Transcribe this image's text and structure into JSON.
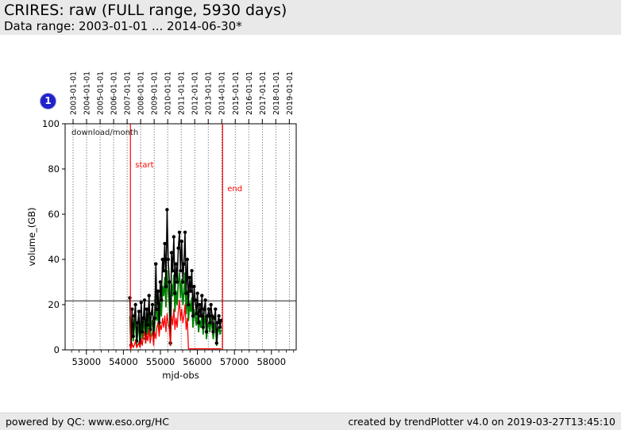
{
  "header": {
    "title": "CRIRES: raw (FULL range, 5930 days)",
    "subtitle": "Data range: 2003-01-01 ... 2014-06-30*"
  },
  "badge": {
    "label": "1",
    "color": "#2121cc"
  },
  "footer": {
    "left": "powered by QC: www.eso.org/HC",
    "right": "created by trendPlotter v4.0 on 2019-03-27T13:45:10"
  },
  "colors": {
    "bar_background": "#e9e9e9",
    "marker_lines": "#ff0000",
    "series_black": "#000000",
    "series_green": "#007f00",
    "series_red": "#ff0000",
    "badge_blue": "#2121cc"
  },
  "chart_data": {
    "type": "line",
    "inner_label": "download/month",
    "xlabel": "mjd-obs",
    "ylabel": "volume_(GB)",
    "xlim": [
      52425,
      58670
    ],
    "ylim": [
      0,
      100
    ],
    "x_ticks": [
      53000,
      54000,
      55000,
      56000,
      57000,
      58000
    ],
    "x_minor_tick_step": 200,
    "y_ticks": [
      0,
      20,
      40,
      60,
      80,
      100
    ],
    "grid": "vertical-dotted-at-year-starts",
    "legend_position": "none",
    "top_axis_dates": [
      "2003-01-01",
      "2004-01-01",
      "2005-01-01",
      "2006-01-01",
      "2007-01-01",
      "2008-01-01",
      "2009-01-01",
      "2010-01-01",
      "2011-01-01",
      "2012-01-01",
      "2013-01-01",
      "2014-01-01",
      "2015-01-01",
      "2016-01-01",
      "2017-01-01",
      "2018-01-01",
      "2019-01-01"
    ],
    "reference_line_y": 21.7,
    "markers": [
      {
        "label": "start",
        "mjd": 54190
      },
      {
        "label": "end",
        "mjd": 56680
      }
    ],
    "months": [
      "2007-03",
      "2007-04",
      "2007-05",
      "2007-06",
      "2007-07",
      "2007-08",
      "2007-09",
      "2007-10",
      "2007-11",
      "2007-12",
      "2008-01",
      "2008-02",
      "2008-03",
      "2008-04",
      "2008-05",
      "2008-06",
      "2008-07",
      "2008-08",
      "2008-09",
      "2008-10",
      "2008-11",
      "2008-12",
      "2009-01",
      "2009-02",
      "2009-03",
      "2009-04",
      "2009-05",
      "2009-06",
      "2009-07",
      "2009-08",
      "2009-09",
      "2009-10",
      "2009-11",
      "2009-12",
      "2010-01",
      "2010-02",
      "2010-03",
      "2010-04",
      "2010-05",
      "2010-06",
      "2010-07",
      "2010-08",
      "2010-09",
      "2010-10",
      "2010-11",
      "2010-12",
      "2011-01",
      "2011-02",
      "2011-03",
      "2011-04",
      "2011-05",
      "2011-06",
      "2011-07",
      "2011-08",
      "2011-09",
      "2011-10",
      "2011-11",
      "2011-12",
      "2012-01",
      "2012-02",
      "2012-03",
      "2012-04",
      "2012-05",
      "2012-06",
      "2012-07",
      "2012-08",
      "2012-09",
      "2012-10",
      "2012-11",
      "2012-12",
      "2013-01",
      "2013-02",
      "2013-03",
      "2013-04",
      "2013-05",
      "2013-06",
      "2013-07",
      "2013-08",
      "2013-09",
      "2013-10",
      "2013-11",
      "2013-12"
    ],
    "series": [
      {
        "name": "series-black",
        "color": "#000000",
        "marker": "circle",
        "values": [
          23,
          2,
          18,
          6,
          15,
          20,
          4,
          12,
          17,
          3,
          21,
          8,
          14,
          22,
          5,
          18,
          11,
          24,
          9,
          16,
          20,
          7,
          14,
          38,
          18,
          26,
          12,
          30,
          22,
          40,
          35,
          47,
          28,
          62,
          40,
          30,
          3,
          43,
          35,
          50,
          25,
          38,
          30,
          45,
          52,
          35,
          48,
          30,
          38,
          52,
          25,
          40,
          20,
          32,
          26,
          35,
          15,
          28,
          22,
          16,
          25,
          12,
          20,
          15,
          24,
          10,
          18,
          22,
          8,
          15,
          18,
          12,
          20,
          15,
          8,
          14,
          18,
          3,
          12,
          15,
          10,
          13
        ]
      },
      {
        "name": "series-green",
        "color": "#007f00",
        "marker": "none",
        "values": [
          15,
          1,
          12,
          4,
          10,
          14,
          2,
          8,
          11,
          2,
          14,
          5,
          9,
          15,
          3,
          12,
          7,
          16,
          6,
          11,
          13,
          4,
          10,
          26,
          13,
          18,
          8,
          21,
          15,
          28,
          24,
          32,
          19,
          35,
          27,
          20,
          2,
          29,
          24,
          33,
          17,
          26,
          20,
          30,
          34,
          23,
          31,
          20,
          25,
          34,
          16,
          26,
          13,
          21,
          17,
          23,
          10,
          18,
          15,
          11,
          17,
          8,
          13,
          10,
          16,
          7,
          12,
          15,
          5,
          10,
          12,
          8,
          14,
          10,
          5,
          9,
          12,
          2,
          8,
          10,
          7,
          9
        ]
      },
      {
        "name": "series-red",
        "color": "#ff0000",
        "marker": "none",
        "values": [
          2,
          0.5,
          3,
          1,
          2,
          4,
          1,
          2,
          3,
          1,
          5,
          2,
          6,
          8,
          3,
          7,
          4,
          9,
          3,
          6,
          8,
          2,
          8,
          5,
          10,
          12,
          6,
          11,
          9,
          14,
          10,
          15,
          8,
          16,
          12,
          9,
          2,
          15,
          11,
          18,
          9,
          14,
          10,
          17,
          22,
          13,
          18,
          12,
          15,
          20,
          9,
          14,
          0.5,
          0.5,
          0.5,
          0.5,
          0.5,
          0.5,
          0.5,
          0.5,
          0.5,
          0.5,
          0.5,
          0.5,
          0.5,
          0.5,
          0.5,
          0.5,
          0.5,
          0.5,
          0.5,
          0.5,
          0.5,
          0.5,
          0.5,
          0.5,
          0.5,
          0.5,
          0.5,
          0.5,
          0.5,
          0.5
        ]
      }
    ]
  }
}
